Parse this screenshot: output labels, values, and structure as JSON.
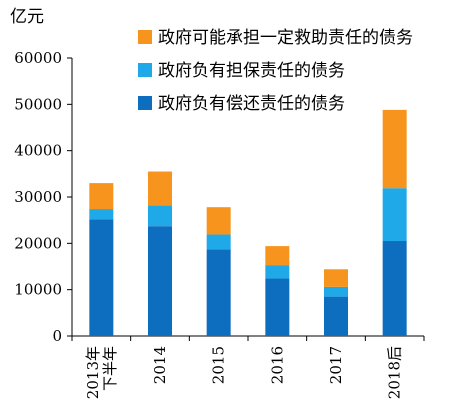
{
  "chart_data": {
    "type": "bar",
    "stacked": true,
    "unit_label": "亿元",
    "categories": [
      [
        "2013年",
        "下半年"
      ],
      [
        "2014"
      ],
      [
        "2015"
      ],
      [
        "2016"
      ],
      [
        "2017"
      ],
      [
        "2018后"
      ]
    ],
    "series": [
      {
        "name": "政府负有偿还责任的债务",
        "color": "#0D6DBE",
        "values": [
          25200,
          23700,
          18700,
          12400,
          8500,
          20500
        ]
      },
      {
        "name": "政府负有担保责任的债务",
        "color": "#1FA9E9",
        "values": [
          2200,
          4500,
          3200,
          2900,
          2100,
          11400
        ]
      },
      {
        "name": "政府可能承担一定救助责任的债务",
        "color": "#F7941D",
        "values": [
          5600,
          7300,
          5900,
          4100,
          3800,
          16900
        ]
      }
    ],
    "legend_order": [
      2,
      1,
      0
    ],
    "ylim": [
      0,
      60000
    ],
    "yticks": [
      0,
      10000,
      20000,
      30000,
      40000,
      50000,
      60000
    ],
    "grid": false,
    "legend_position": "top-right"
  }
}
